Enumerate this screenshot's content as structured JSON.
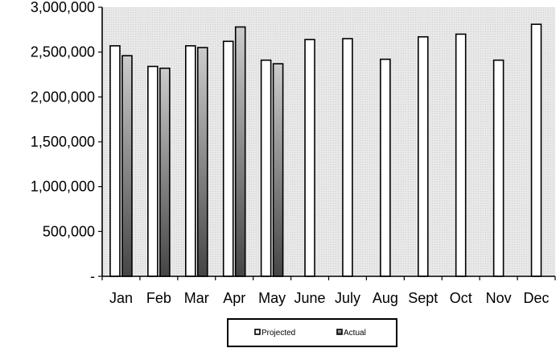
{
  "chart_data": {
    "type": "bar",
    "title": "",
    "xlabel": "",
    "ylabel": "",
    "categories": [
      "Jan",
      "Feb",
      "Mar",
      "Apr",
      "May",
      "June",
      "July",
      "Aug",
      "Sept",
      "Oct",
      "Nov",
      "Dec"
    ],
    "series": [
      {
        "name": "Projected",
        "values": [
          2570000,
          2340000,
          2570000,
          2620000,
          2410000,
          2640000,
          2650000,
          2420000,
          2670000,
          2700000,
          2410000,
          2810000
        ]
      },
      {
        "name": "Actual",
        "values": [
          2460000,
          2320000,
          2550000,
          2780000,
          2370000,
          null,
          null,
          null,
          null,
          null,
          null,
          null
        ]
      }
    ],
    "ylim": [
      0,
      3000000
    ],
    "yticks": [
      0,
      500000,
      1000000,
      1500000,
      2000000,
      2500000,
      3000000
    ],
    "ytick_labels": [
      "-",
      "500,000",
      "1,000,000",
      "1,500,000",
      "2,000,000",
      "2,500,000",
      "3,000,000"
    ],
    "grid": false,
    "legend_position": "bottom-center",
    "colors": {
      "plot_background": "#e6e6e6",
      "projected_fill": "#ffffff",
      "actual_fill_top": "#c8c8c8",
      "actual_fill_bottom": "#4a4a4a",
      "bar_stroke": "#000000"
    }
  }
}
